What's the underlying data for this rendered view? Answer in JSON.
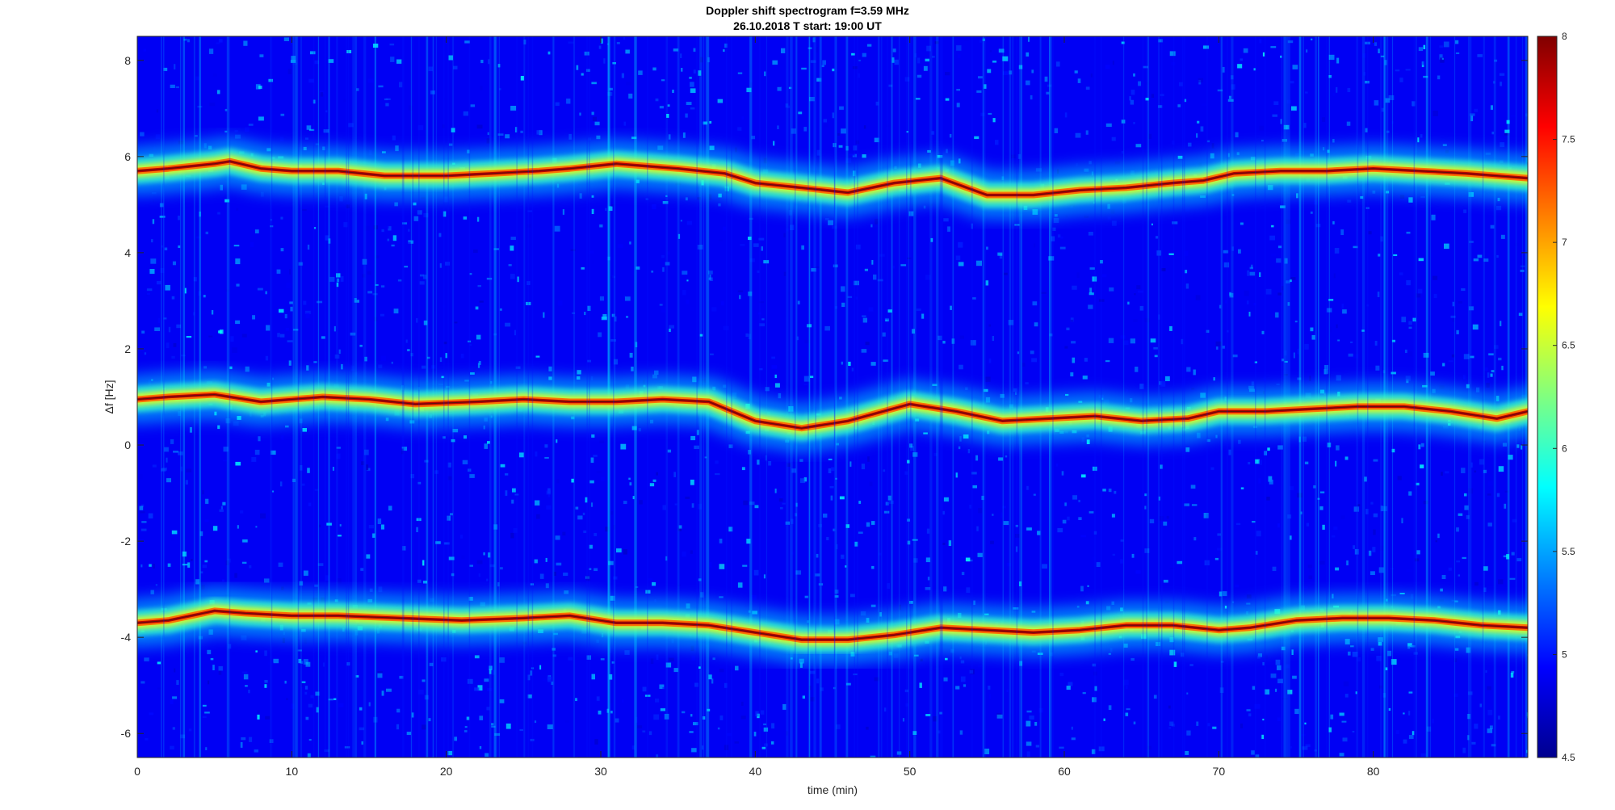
{
  "chart_data": {
    "type": "heatmap",
    "title": "Doppler shift spectrogram f=3.59 MHz",
    "subtitle": "26.10.2018   T start: 19:00 UT",
    "xlabel": "time (min)",
    "ylabel": "Δf [Hz]",
    "xlim": [
      0,
      90
    ],
    "ylim": [
      -6.5,
      8.5
    ],
    "x_ticks": [
      0,
      10,
      20,
      30,
      40,
      50,
      60,
      70,
      80
    ],
    "y_ticks": [
      -6,
      -4,
      -2,
      0,
      2,
      4,
      6,
      8
    ],
    "colormap": "jet",
    "colorbar": {
      "range": [
        4.5,
        8
      ],
      "ticks": [
        4.5,
        5,
        5.5,
        6,
        6.5,
        7,
        7.5,
        8
      ]
    },
    "background_level": 4.9,
    "traces": [
      {
        "time_min": [
          0,
          2,
          5,
          6,
          8,
          10,
          13,
          16,
          20,
          23,
          26,
          28,
          31,
          35,
          38,
          40,
          43,
          46,
          49,
          52,
          55,
          58,
          61,
          64,
          67,
          69,
          71,
          74,
          77,
          80,
          83,
          86,
          90
        ],
        "freq_hz": [
          5.7,
          5.75,
          5.85,
          5.9,
          5.75,
          5.7,
          5.7,
          5.6,
          5.6,
          5.65,
          5.7,
          5.75,
          5.85,
          5.75,
          5.65,
          5.45,
          5.35,
          5.25,
          5.45,
          5.55,
          5.2,
          5.2,
          5.3,
          5.35,
          5.45,
          5.5,
          5.65,
          5.7,
          5.7,
          5.75,
          5.7,
          5.65,
          5.55
        ]
      },
      {
        "time_min": [
          0,
          2,
          5,
          8,
          10,
          12,
          15,
          18,
          22,
          25,
          28,
          31,
          34,
          37,
          40,
          43,
          46,
          50,
          53,
          56,
          59,
          62,
          65,
          68,
          70,
          73,
          76,
          79,
          82,
          85,
          88,
          90
        ],
        "freq_hz": [
          0.95,
          1.0,
          1.05,
          0.9,
          0.95,
          1.0,
          0.95,
          0.85,
          0.9,
          0.95,
          0.9,
          0.9,
          0.95,
          0.9,
          0.5,
          0.35,
          0.5,
          0.85,
          0.7,
          0.5,
          0.55,
          0.6,
          0.5,
          0.55,
          0.7,
          0.7,
          0.75,
          0.8,
          0.8,
          0.7,
          0.55,
          0.7
        ]
      },
      {
        "time_min": [
          0,
          2,
          5,
          7,
          10,
          13,
          17,
          21,
          25,
          28,
          31,
          34,
          37,
          40,
          43,
          46,
          49,
          52,
          55,
          58,
          61,
          64,
          67,
          70,
          72,
          75,
          78,
          81,
          84,
          87,
          90
        ],
        "freq_hz": [
          -3.7,
          -3.65,
          -3.45,
          -3.5,
          -3.55,
          -3.55,
          -3.6,
          -3.65,
          -3.6,
          -3.55,
          -3.7,
          -3.7,
          -3.75,
          -3.9,
          -4.05,
          -4.05,
          -3.95,
          -3.8,
          -3.85,
          -3.9,
          -3.85,
          -3.75,
          -3.75,
          -3.85,
          -3.8,
          -3.65,
          -3.6,
          -3.6,
          -3.65,
          -3.75,
          -3.8
        ]
      }
    ]
  }
}
